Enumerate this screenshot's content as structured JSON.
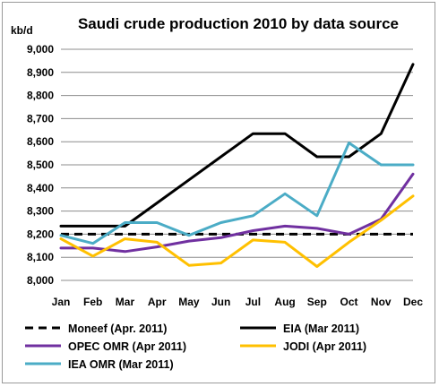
{
  "chart_data": {
    "type": "line",
    "title": "Saudi crude production 2010 by data source",
    "ylabel": "kb/d",
    "categories": [
      "Jan",
      "Feb",
      "Mar",
      "Apr",
      "May",
      "Jun",
      "Jul",
      "Aug",
      "Sep",
      "Oct",
      "Nov",
      "Dec"
    ],
    "ylim": [
      8000,
      9000
    ],
    "yticks": [
      8000,
      8100,
      8200,
      8300,
      8400,
      8500,
      8600,
      8700,
      8800,
      8900,
      9000
    ],
    "ytick_labels": [
      "8,000",
      "8,100",
      "8,200",
      "8,300",
      "8,400",
      "8,500",
      "8,600",
      "8,700",
      "8,800",
      "8,900",
      "9,000"
    ],
    "grid": "horizontal",
    "legend_position": "bottom",
    "series": [
      {
        "name": "Moneef (Apr. 2011)",
        "color": "#000000",
        "dash": "dashed",
        "values": [
          8200,
          8200,
          8200,
          8200,
          8200,
          8200,
          8200,
          8200,
          8200,
          8200,
          8200,
          8200
        ]
      },
      {
        "name": "EIA (Mar 2011)",
        "color": "#000000",
        "dash": "solid",
        "values": [
          8235,
          8235,
          8235,
          8335,
          8435,
          8535,
          8635,
          8635,
          8535,
          8535,
          8635,
          8935
        ]
      },
      {
        "name": "OPEC OMR (Apr 2011)",
        "color": "#7030a0",
        "dash": "solid",
        "values": [
          8140,
          8140,
          8125,
          8145,
          8170,
          8185,
          8215,
          8235,
          8225,
          8200,
          8265,
          8460
        ]
      },
      {
        "name": "JODI (Apr 2011)",
        "color": "#ffc000",
        "dash": "solid",
        "values": [
          8180,
          8105,
          8180,
          8165,
          8065,
          8075,
          8175,
          8165,
          8060,
          8165,
          8260,
          8365
        ]
      },
      {
        "name": "IEA OMR (Mar 2011)",
        "color": "#4bacc6",
        "dash": "solid",
        "values": [
          8195,
          8160,
          8250,
          8250,
          8195,
          8250,
          8280,
          8375,
          8280,
          8595,
          8500,
          8500
        ]
      }
    ]
  }
}
